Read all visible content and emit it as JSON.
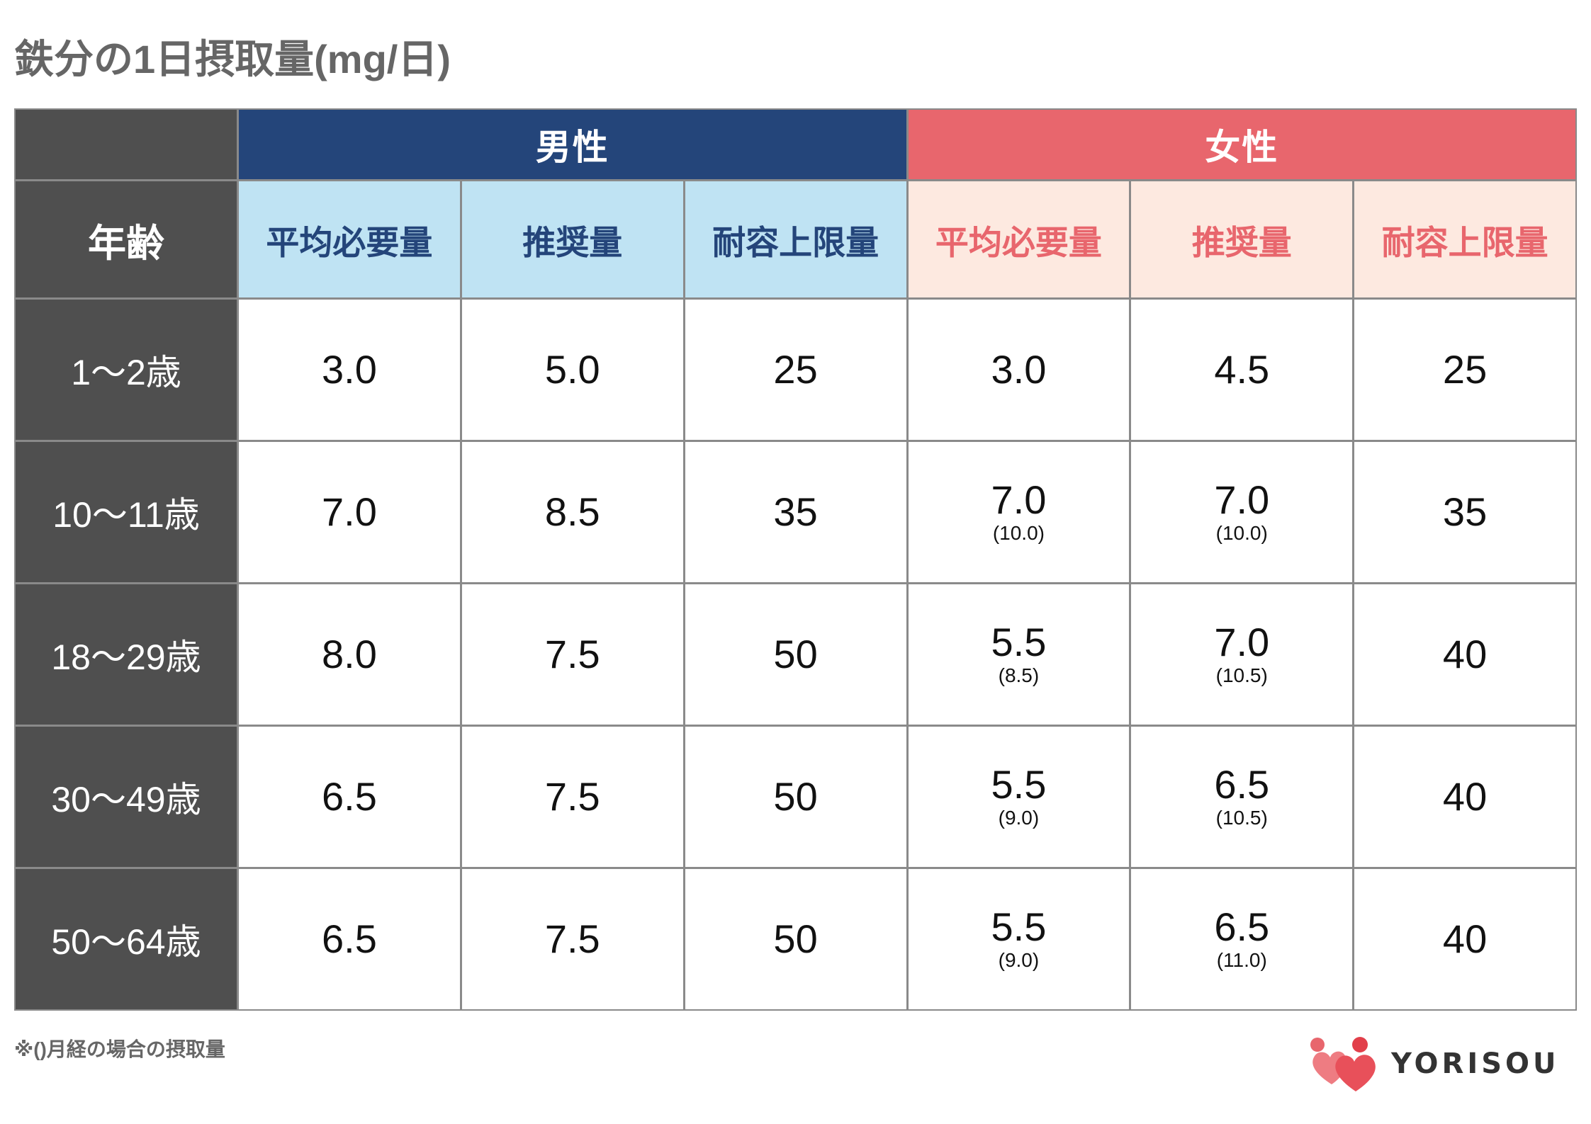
{
  "colors": {
    "title": "#666666",
    "age_column_bg": "#4f4f4f",
    "grid_line": "#8a8a8a",
    "logo_accent": "#e8505a"
  },
  "chart_data": {
    "type": "table",
    "title": "鉄分の1日摂取量(mg/日)",
    "row_header": "年齢",
    "groups": [
      {
        "name": "男性",
        "color": "#24457a",
        "header_bg": "#bfe3f3",
        "columns": [
          "平均必要量",
          "推奨量",
          "耐容上限量"
        ]
      },
      {
        "name": "女性",
        "color": "#e8666d",
        "header_bg": "#fde9e0",
        "columns": [
          "平均必要量",
          "推奨量",
          "耐容上限量"
        ]
      }
    ],
    "rows": [
      {
        "label": "1〜2歳",
        "cells": [
          {
            "value": "3.0"
          },
          {
            "value": "5.0"
          },
          {
            "value": "25"
          },
          {
            "value": "3.0"
          },
          {
            "value": "4.5"
          },
          {
            "value": "25"
          }
        ]
      },
      {
        "label": "10〜11歳",
        "cells": [
          {
            "value": "7.0"
          },
          {
            "value": "8.5"
          },
          {
            "value": "35"
          },
          {
            "value": "7.0",
            "note": "(10.0)"
          },
          {
            "value": "7.0",
            "note": "(10.0)"
          },
          {
            "value": "35"
          }
        ]
      },
      {
        "label": "18〜29歳",
        "cells": [
          {
            "value": "8.0"
          },
          {
            "value": "7.5"
          },
          {
            "value": "50"
          },
          {
            "value": "5.5",
            "note": "(8.5)"
          },
          {
            "value": "7.0",
            "note": "(10.5)"
          },
          {
            "value": "40"
          }
        ]
      },
      {
        "label": "30〜49歳",
        "cells": [
          {
            "value": "6.5"
          },
          {
            "value": "7.5"
          },
          {
            "value": "50"
          },
          {
            "value": "5.5",
            "note": "(9.0)"
          },
          {
            "value": "6.5",
            "note": "(10.5)"
          },
          {
            "value": "40"
          }
        ]
      },
      {
        "label": "50〜64歳",
        "cells": [
          {
            "value": "6.5"
          },
          {
            "value": "7.5"
          },
          {
            "value": "50"
          },
          {
            "value": "5.5",
            "note": "(9.0)"
          },
          {
            "value": "6.5",
            "note": "(11.0)"
          },
          {
            "value": "40"
          }
        ]
      }
    ],
    "footnote": "※()月経の場合の摂取量"
  },
  "logo": {
    "text": "YORISOU",
    "icon": "yorisou-people-icon"
  }
}
